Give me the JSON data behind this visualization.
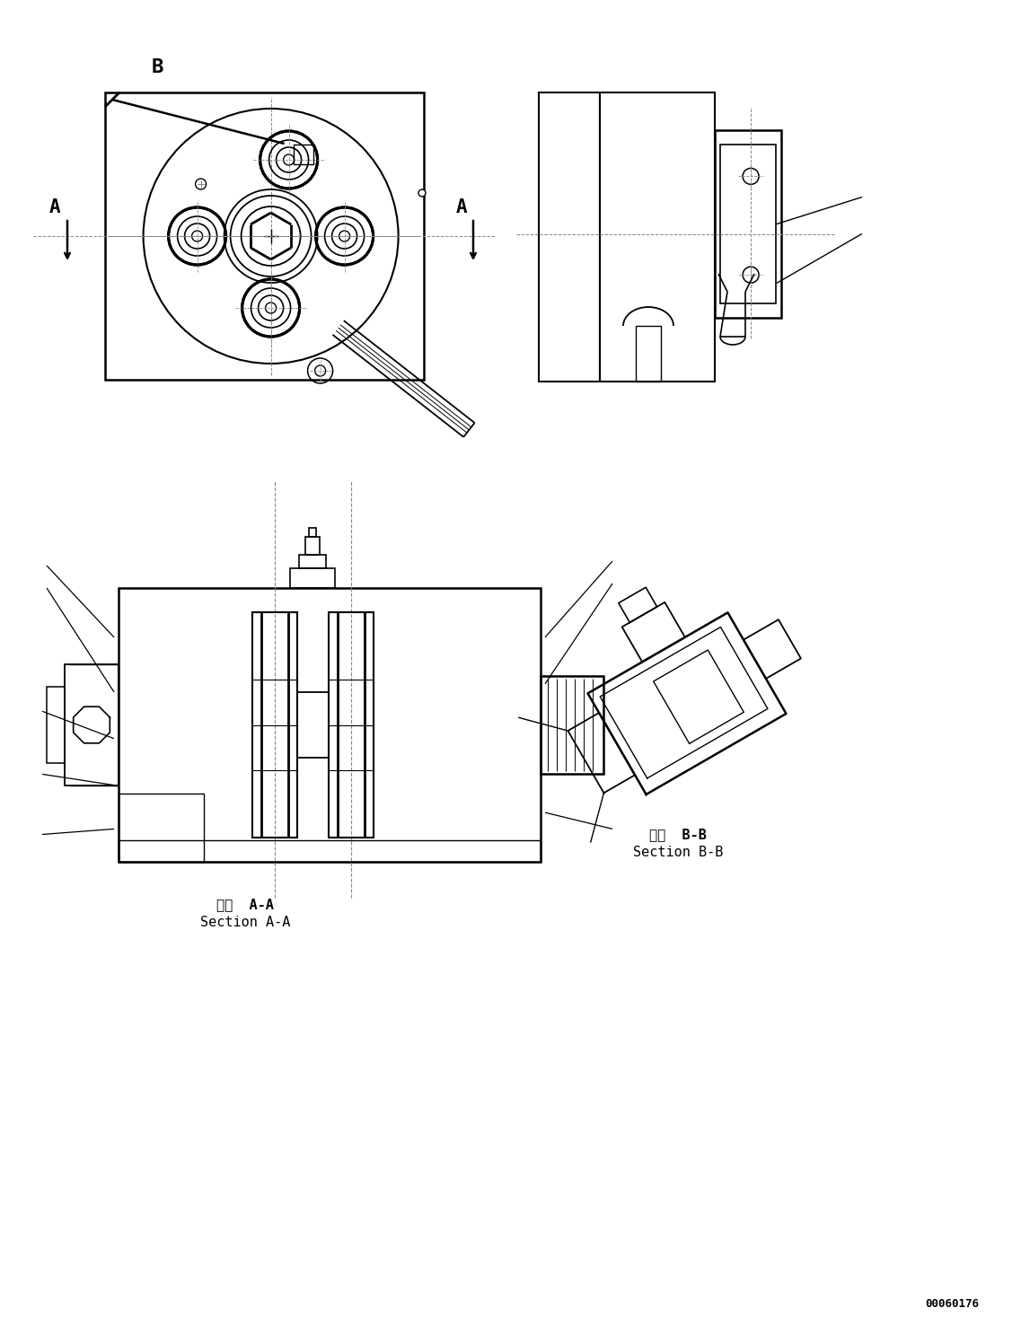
{
  "bg_color": "#ffffff",
  "lc": "#000000",
  "dc": "#888888",
  "part_number": "00060176",
  "sec_aa_ja": "断面  A-A",
  "sec_aa_en": "Section A-A",
  "sec_bb_ja": "断面  B-B",
  "sec_bb_en": "Section B-B",
  "A": "A",
  "B": "B"
}
